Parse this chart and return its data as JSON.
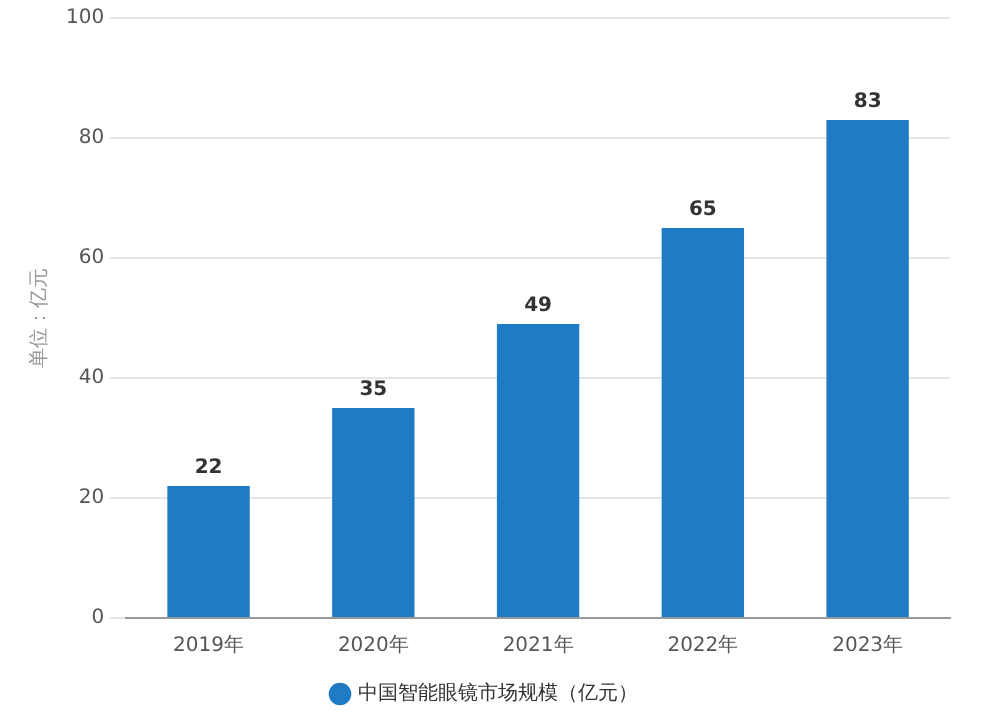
{
  "chart_data": {
    "type": "bar",
    "ylabel": "单位：亿元",
    "categories": [
      "2019年",
      "2020年",
      "2021年",
      "2022年",
      "2023年"
    ],
    "series": [
      {
        "name": "中国智能眼镜市场规模（亿元）",
        "color": "#1f7bc4",
        "values": [
          22,
          35,
          49,
          65,
          83
        ]
      }
    ],
    "ylim": [
      0,
      100
    ],
    "yticks": [
      0,
      20,
      40,
      60,
      80,
      100
    ],
    "grid": "y",
    "legend": "bottom",
    "data_labels": true
  }
}
